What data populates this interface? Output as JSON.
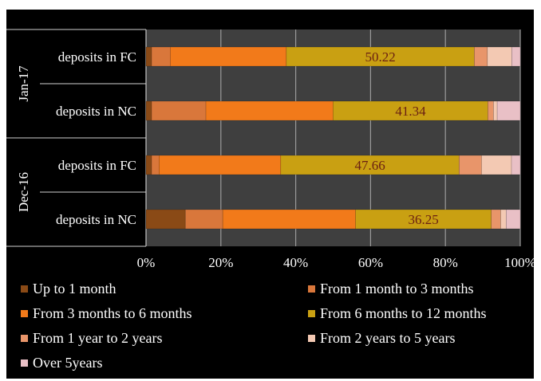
{
  "chart_data": {
    "type": "bar",
    "orientation": "horizontal",
    "stacking": "percent",
    "groups": [
      {
        "label": "Jan-17",
        "rows": [
          "deposits in FC",
          "deposits in NC"
        ]
      },
      {
        "label": "Dec-16",
        "rows": [
          "deposits in FC",
          "deposits in NC"
        ]
      }
    ],
    "categories": [
      "deposits in FC",
      "deposits in NC",
      "deposits in FC",
      "deposits in NC"
    ],
    "series": [
      {
        "name": "Up to 1 month",
        "color": "#8a4a16",
        "values": [
          1.5,
          1.5,
          1.5,
          10.5
        ]
      },
      {
        "name": "From 1 month to 3 months",
        "color": "#d9773b",
        "values": [
          5.0,
          14.5,
          2.0,
          10.0
        ]
      },
      {
        "name": "From 3 months to 6 months",
        "color": "#f27a1a",
        "values": [
          31.0,
          34.0,
          32.5,
          35.5
        ]
      },
      {
        "name": "From 6 months to 12 months",
        "color": "#c9a012",
        "values": [
          50.22,
          41.34,
          47.66,
          36.25
        ]
      },
      {
        "name": "From 1 year to 2 years",
        "color": "#e8956a",
        "values": [
          3.5,
          1.5,
          6.0,
          2.5
        ]
      },
      {
        "name": "From 2 years to 5 years",
        "color": "#f3c9b3",
        "values": [
          6.5,
          1.0,
          8.0,
          1.5
        ]
      },
      {
        "name": "Over 5years",
        "color": "#e9c0c6",
        "values": [
          2.28,
          6.16,
          2.34,
          3.75
        ]
      }
    ],
    "data_labels": [
      "50.22",
      "41.34",
      "47.66",
      "36.25"
    ],
    "xlim": [
      0,
      100
    ],
    "xticks": [
      "0%",
      "20%",
      "40%",
      "60%",
      "80%",
      "100%"
    ],
    "grid": true,
    "legend_position": "bottom",
    "title": "",
    "xlabel": "",
    "ylabel": ""
  },
  "legend": {
    "items": [
      "Up to 1 month",
      "From 1 month to 3 months",
      "From 3 months to 6 months",
      "From 6 months to 12 months",
      "From 1 year to 2 years",
      "From 2 years to 5 years",
      "Over 5years"
    ]
  },
  "colors": {
    "background": "#000000",
    "plot_area": "#3f3f3f",
    "gridline": "#9a9a9a",
    "text": "#ffffff",
    "data_label": "#6a1f12"
  }
}
